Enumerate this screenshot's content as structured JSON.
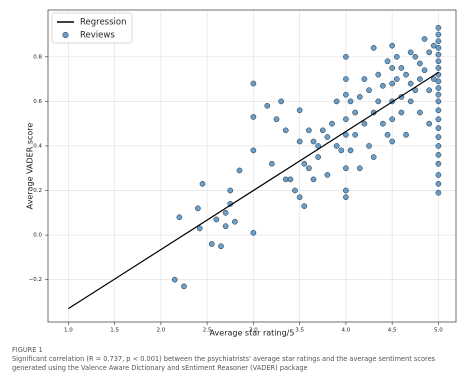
{
  "chart_data": {
    "type": "scatter",
    "xlabel": "Average star rating/5",
    "ylabel": "Average VADER score",
    "xlim": [
      0.78,
      5.19
    ],
    "ylim": [
      -0.39,
      1.01
    ],
    "xticks": [
      {
        "value": 1,
        "label": "1.0"
      },
      1.5,
      {
        "value": 2,
        "label": "2.0"
      },
      2.5,
      {
        "value": 3,
        "label": "3.0"
      },
      3.5,
      {
        "value": 4,
        "label": "4.0"
      },
      4.5,
      {
        "value": 5,
        "label": "5.0"
      }
    ],
    "yticks": [
      {
        "value": -0.2,
        "label": "−0.2"
      },
      {
        "value": 0,
        "label": "0.0"
      },
      0.2,
      0.4,
      0.6,
      0.8
    ],
    "grid": true,
    "legend": "upper-left",
    "series": [
      {
        "name": "Regression",
        "type": "line",
        "color": "#000000",
        "x": [
          1.0,
          5.0
        ],
        "values": [
          -0.33,
          0.73
        ]
      },
      {
        "name": "Reviews",
        "type": "scatter",
        "color": "#3b7fb6",
        "x": [
          2.15,
          2.25,
          2.2,
          2.4,
          2.45,
          2.42,
          2.55,
          2.65,
          2.6,
          2.7,
          2.75,
          2.7,
          2.8,
          2.85,
          2.75,
          3.0,
          3.0,
          3.0,
          3.0,
          3.15,
          3.2,
          3.25,
          3.3,
          3.35,
          3.4,
          3.35,
          3.45,
          3.5,
          3.5,
          3.5,
          3.55,
          3.55,
          3.6,
          3.6,
          3.65,
          3.65,
          3.7,
          3.7,
          3.75,
          3.8,
          3.8,
          3.85,
          3.9,
          3.9,
          3.95,
          4.0,
          4.0,
          4.0,
          4.0,
          4.0,
          4.0,
          4.0,
          4.0,
          4.05,
          4.05,
          4.1,
          4.1,
          4.15,
          4.15,
          4.2,
          4.2,
          4.25,
          4.25,
          4.3,
          4.3,
          4.3,
          4.35,
          4.35,
          4.4,
          4.4,
          4.45,
          4.45,
          4.5,
          4.5,
          4.5,
          4.5,
          4.5,
          4.5,
          4.55,
          4.55,
          4.6,
          4.6,
          4.6,
          4.65,
          4.65,
          4.7,
          4.7,
          4.7,
          4.75,
          4.75,
          4.8,
          4.8,
          4.8,
          4.85,
          4.85,
          4.9,
          4.9,
          4.9,
          4.95,
          4.95,
          5.0,
          5.0,
          5.0,
          5.0,
          5.0,
          5.0,
          5.0,
          5.0,
          5.0,
          5.0,
          5.0,
          5.0,
          5.0,
          5.0,
          5.0,
          5.0,
          5.0,
          5.0,
          5.0,
          5.0,
          5.0,
          5.0
        ],
        "values": [
          -0.2,
          -0.23,
          0.08,
          0.12,
          0.23,
          0.03,
          -0.04,
          -0.05,
          0.07,
          0.1,
          0.14,
          0.04,
          0.06,
          0.29,
          0.2,
          0.68,
          0.53,
          0.01,
          0.38,
          0.58,
          0.32,
          0.52,
          0.6,
          0.25,
          0.25,
          0.47,
          0.2,
          0.17,
          0.42,
          0.56,
          0.13,
          0.32,
          0.3,
          0.47,
          0.42,
          0.25,
          0.35,
          0.4,
          0.47,
          0.27,
          0.44,
          0.5,
          0.4,
          0.6,
          0.38,
          0.8,
          0.7,
          0.63,
          0.52,
          0.45,
          0.3,
          0.17,
          0.2,
          0.6,
          0.38,
          0.55,
          0.45,
          0.62,
          0.3,
          0.5,
          0.7,
          0.65,
          0.4,
          0.84,
          0.55,
          0.35,
          0.6,
          0.72,
          0.5,
          0.67,
          0.78,
          0.45,
          0.85,
          0.75,
          0.68,
          0.6,
          0.52,
          0.42,
          0.7,
          0.8,
          0.62,
          0.75,
          0.55,
          0.72,
          0.45,
          0.82,
          0.68,
          0.6,
          0.8,
          0.65,
          0.77,
          0.7,
          0.55,
          0.88,
          0.74,
          0.82,
          0.65,
          0.5,
          0.85,
          0.7,
          0.93,
          0.9,
          0.87,
          0.84,
          0.81,
          0.78,
          0.75,
          0.72,
          0.69,
          0.66,
          0.63,
          0.6,
          0.56,
          0.52,
          0.48,
          0.44,
          0.4,
          0.36,
          0.32,
          0.27,
          0.23,
          0.19
        ]
      }
    ]
  },
  "figure": {
    "label": "FIGURE 1",
    "caption": "Significant correlation (R = 0.737, p < 0.001) between the psychiatrists' average star ratings and the average sentiment scores generated using the Valence Aware Dictionary and sEntiment Reasoner (VADER) package"
  }
}
